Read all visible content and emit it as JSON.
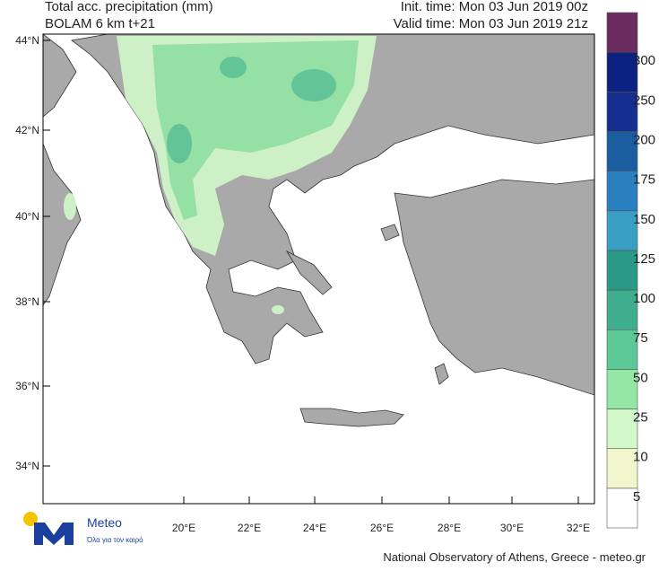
{
  "header": {
    "title": "Total acc. precipitation (mm)",
    "model": "BOLAM 6 km t+21",
    "init_time": "Init. time: Mon 03 Jun 2019 00z",
    "valid_time": "Valid time: Mon 03 Jun 2019 21z"
  },
  "map": {
    "lat_labels": [
      "44°N",
      "42°N",
      "40°N",
      "38°N",
      "36°N",
      "34°N"
    ],
    "lon_labels": [
      "20°E",
      "22°E",
      "24°E",
      "26°E",
      "28°E",
      "30°E",
      "32°E"
    ]
  },
  "colorbar": {
    "levels": [
      5,
      10,
      25,
      50,
      75,
      100,
      125,
      150,
      175,
      200,
      250,
      300
    ],
    "colors": [
      "#ffffff",
      "#f2f6cc",
      "#d2f8ca",
      "#93e6a4",
      "#5cc896",
      "#3fae8e",
      "#2a9a86",
      "#3a9fc4",
      "#2a7fbf",
      "#1b5ea0",
      "#142f8f",
      "#0b2280",
      "#6b2b5e"
    ]
  },
  "logo": {
    "name": "Meteo",
    "tagline": "Όλα για τον καιρό"
  },
  "footer": "National Observatory of Athens, Greece - meteo.gr"
}
